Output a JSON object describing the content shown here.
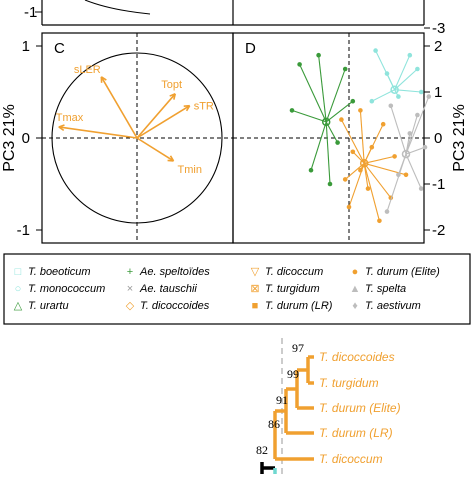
{
  "colors": {
    "orange": "#f0a030",
    "green": "#3a9a3a",
    "cyan": "#8fe4dc",
    "grey": "#bdbdbd",
    "black": "#000000"
  },
  "chart_data": [
    {
      "type": "scatter",
      "panel": "C",
      "title": "",
      "ylabel": "PC3 21%",
      "xlim": [
        -1.2,
        1.2
      ],
      "ylim": [
        -1.2,
        1.2
      ],
      "yticks": [
        "-1",
        "0",
        "1"
      ],
      "circle": true,
      "dashed_zero_lines": true,
      "vectors": [
        {
          "label": "sLER",
          "x": -0.42,
          "y": 0.72
        },
        {
          "label": "Topt",
          "x": 0.45,
          "y": 0.52
        },
        {
          "label": "sTR",
          "x": 0.62,
          "y": 0.38
        },
        {
          "label": "Tmax",
          "x": -0.92,
          "y": 0.13
        },
        {
          "label": "Tmin",
          "x": 0.43,
          "y": -0.27
        }
      ]
    },
    {
      "type": "scatter",
      "panel": "D",
      "title": "",
      "ylabel": "PC3 21%",
      "ylim": [
        -2.5,
        2.5
      ],
      "yticks": [
        "-2",
        "-1",
        "0",
        "1",
        "2"
      ],
      "dashed_zero_lines": true,
      "series": [
        {
          "name": "T. boeoticum / T. monococcum",
          "color": "#8fe4dc",
          "centroid": [
            1.2,
            1.05
          ],
          "points": [
            [
              0.7,
              1.9
            ],
            [
              1.6,
              1.8
            ],
            [
              1.0,
              1.4
            ],
            [
              1.8,
              1.5
            ],
            [
              1.3,
              0.9
            ],
            [
              1.9,
              1.0
            ],
            [
              0.6,
              0.8
            ]
          ]
        },
        {
          "name": "T. urartu / Ae. speltoides",
          "color": "#3a9a3a",
          "centroid": [
            -0.6,
            0.35
          ],
          "points": [
            [
              -1.3,
              1.6
            ],
            [
              -0.8,
              1.8
            ],
            [
              -0.1,
              1.5
            ],
            [
              -1.5,
              0.6
            ],
            [
              -0.3,
              -0.1
            ],
            [
              -1.0,
              -0.7
            ],
            [
              -0.5,
              -1.0
            ],
            [
              0.1,
              0.8
            ]
          ]
        },
        {
          "name": "T. dicoccoides / T. dicoccum / T. turgidum / T. durum",
          "color": "#f0a030",
          "centroid": [
            0.4,
            -0.55
          ],
          "points": [
            [
              -0.2,
              0.4
            ],
            [
              0.3,
              0.6
            ],
            [
              0.9,
              0.3
            ],
            [
              0.1,
              -0.3
            ],
            [
              0.6,
              -0.2
            ],
            [
              1.2,
              -0.4
            ],
            [
              -0.1,
              -0.9
            ],
            [
              0.5,
              -1.1
            ],
            [
              1.1,
              -1.3
            ],
            [
              0.0,
              -1.5
            ],
            [
              0.8,
              -1.8
            ],
            [
              0.3,
              -0.7
            ],
            [
              1.5,
              -0.8
            ]
          ]
        },
        {
          "name": "T. spelta / T. aestivum",
          "color": "#bdbdbd",
          "centroid": [
            1.5,
            -0.35
          ],
          "points": [
            [
              1.1,
              0.7
            ],
            [
              1.8,
              0.5
            ],
            [
              2.0,
              -0.2
            ],
            [
              1.3,
              -0.8
            ],
            [
              1.9,
              -1.1
            ],
            [
              1.0,
              -1.6
            ],
            [
              1.6,
              0.1
            ],
            [
              2.1,
              0.9
            ]
          ]
        }
      ]
    },
    {
      "type": "tree",
      "title": "",
      "bootstrap": [
        "97",
        "99",
        "91",
        "86",
        "82"
      ],
      "taxa": [
        "T. dicoccoides",
        "T. turgidum",
        "T. durum (Elite)",
        "T. durum (LR)",
        "T. dicoccum"
      ]
    }
  ],
  "panels": {
    "c_label": "C",
    "d_label": "D",
    "pc3_label": "PC3 21%",
    "top_tick_left": "-1",
    "top_tick_right": "-3"
  },
  "legend": {
    "items": [
      {
        "symbol": "□",
        "label": "T. boeoticum",
        "color": "#8fe4dc"
      },
      {
        "symbol": "+",
        "label": "Ae. speltoïdes",
        "color": "#3a9a3a"
      },
      {
        "symbol": "▽",
        "label": "T. dicoccum",
        "color": "#f0a030"
      },
      {
        "symbol": "●",
        "label": "T. durum (Elite)",
        "color": "#f0a030"
      },
      {
        "symbol": "○",
        "label": "T. monococcum",
        "color": "#8fe4dc"
      },
      {
        "symbol": "×",
        "label": "Ae. tauschii",
        "color": "#999999"
      },
      {
        "symbol": "⊠",
        "label": "T. turgidum",
        "color": "#f0a030"
      },
      {
        "symbol": "▲",
        "label": "T. spelta",
        "color": "#bdbdbd"
      },
      {
        "symbol": "△",
        "label": "T. urartu",
        "color": "#3a9a3a"
      },
      {
        "symbol": "◇",
        "label": "T. dicoccoides",
        "color": "#f0a030"
      },
      {
        "symbol": "■",
        "label": "T. durum (LR)",
        "color": "#f0a030"
      },
      {
        "symbol": "♦",
        "label": "T. aestivum",
        "color": "#bdbdbd"
      }
    ]
  }
}
